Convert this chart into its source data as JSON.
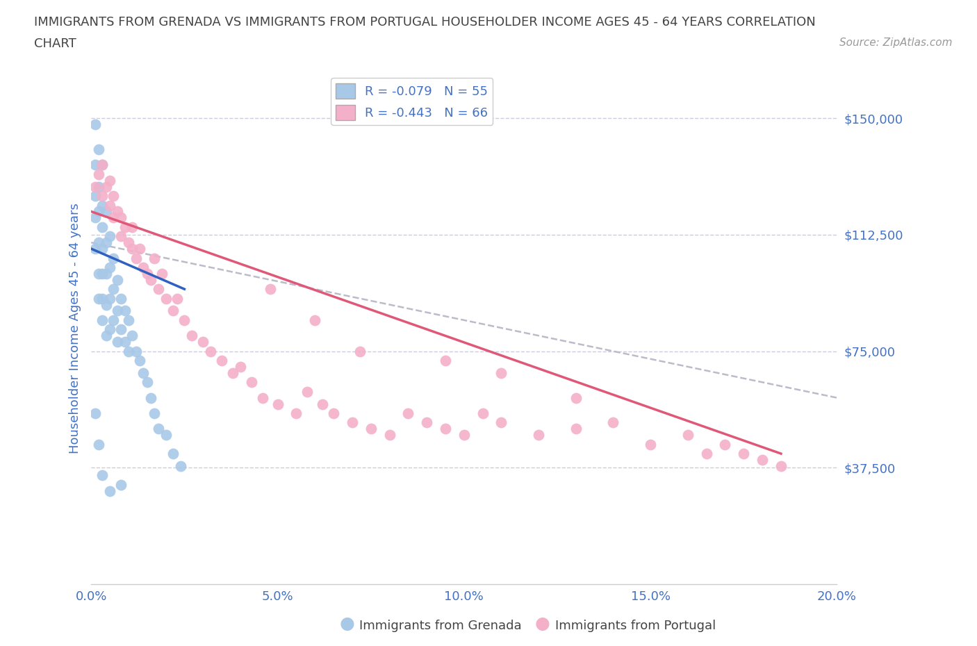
{
  "title_line1": "IMMIGRANTS FROM GRENADA VS IMMIGRANTS FROM PORTUGAL HOUSEHOLDER INCOME AGES 45 - 64 YEARS CORRELATION",
  "title_line2": "CHART",
  "source_text": "Source: ZipAtlas.com",
  "ylabel": "Householder Income Ages 45 - 64 years",
  "xlim": [
    0.0,
    0.2
  ],
  "ylim": [
    0,
    165000
  ],
  "yticks": [
    0,
    37500,
    75000,
    112500,
    150000
  ],
  "ytick_labels": [
    "",
    "$37,500",
    "$75,000",
    "$112,500",
    "$150,000"
  ],
  "xticks": [
    0.0,
    0.05,
    0.1,
    0.15,
    0.2
  ],
  "xtick_labels": [
    "0.0%",
    "5.0%",
    "10.0%",
    "15.0%",
    "20.0%"
  ],
  "grenada_color": "#a8c8e8",
  "portugal_color": "#f4b0c8",
  "grenada_line_color": "#3060c0",
  "portugal_line_color": "#e05878",
  "trendline_color": "#b8b8c8",
  "legend_label1": "R = -0.079   N = 55",
  "legend_label2": "R = -0.443   N = 66",
  "grenada_x": [
    0.001,
    0.001,
    0.001,
    0.001,
    0.001,
    0.002,
    0.002,
    0.002,
    0.002,
    0.002,
    0.002,
    0.003,
    0.003,
    0.003,
    0.003,
    0.003,
    0.003,
    0.003,
    0.004,
    0.004,
    0.004,
    0.004,
    0.004,
    0.005,
    0.005,
    0.005,
    0.005,
    0.006,
    0.006,
    0.006,
    0.007,
    0.007,
    0.007,
    0.008,
    0.008,
    0.009,
    0.009,
    0.01,
    0.01,
    0.011,
    0.012,
    0.013,
    0.014,
    0.015,
    0.016,
    0.017,
    0.018,
    0.02,
    0.022,
    0.024,
    0.001,
    0.002,
    0.003,
    0.005,
    0.008
  ],
  "grenada_y": [
    148000,
    135000,
    125000,
    118000,
    108000,
    140000,
    128000,
    120000,
    110000,
    100000,
    92000,
    135000,
    122000,
    115000,
    108000,
    100000,
    92000,
    85000,
    120000,
    110000,
    100000,
    90000,
    80000,
    112000,
    102000,
    92000,
    82000,
    105000,
    95000,
    85000,
    98000,
    88000,
    78000,
    92000,
    82000,
    88000,
    78000,
    85000,
    75000,
    80000,
    75000,
    72000,
    68000,
    65000,
    60000,
    55000,
    50000,
    48000,
    42000,
    38000,
    55000,
    45000,
    35000,
    30000,
    32000
  ],
  "portugal_x": [
    0.001,
    0.002,
    0.003,
    0.003,
    0.004,
    0.005,
    0.005,
    0.006,
    0.006,
    0.007,
    0.008,
    0.008,
    0.009,
    0.01,
    0.011,
    0.011,
    0.012,
    0.013,
    0.014,
    0.015,
    0.016,
    0.017,
    0.018,
    0.019,
    0.02,
    0.022,
    0.023,
    0.025,
    0.027,
    0.03,
    0.032,
    0.035,
    0.038,
    0.04,
    0.043,
    0.046,
    0.05,
    0.055,
    0.058,
    0.062,
    0.065,
    0.07,
    0.075,
    0.08,
    0.085,
    0.09,
    0.095,
    0.1,
    0.105,
    0.11,
    0.12,
    0.13,
    0.14,
    0.15,
    0.16,
    0.165,
    0.17,
    0.175,
    0.18,
    0.185,
    0.048,
    0.06,
    0.072,
    0.095,
    0.11,
    0.13
  ],
  "portugal_y": [
    128000,
    132000,
    135000,
    125000,
    128000,
    130000,
    122000,
    125000,
    118000,
    120000,
    118000,
    112000,
    115000,
    110000,
    108000,
    115000,
    105000,
    108000,
    102000,
    100000,
    98000,
    105000,
    95000,
    100000,
    92000,
    88000,
    92000,
    85000,
    80000,
    78000,
    75000,
    72000,
    68000,
    70000,
    65000,
    60000,
    58000,
    55000,
    62000,
    58000,
    55000,
    52000,
    50000,
    48000,
    55000,
    52000,
    50000,
    48000,
    55000,
    52000,
    48000,
    50000,
    52000,
    45000,
    48000,
    42000,
    45000,
    42000,
    40000,
    38000,
    95000,
    85000,
    75000,
    72000,
    68000,
    60000
  ],
  "background_color": "#ffffff",
  "grid_color": "#ccccdd",
  "title_color": "#444444",
  "tick_color": "#4472c4"
}
